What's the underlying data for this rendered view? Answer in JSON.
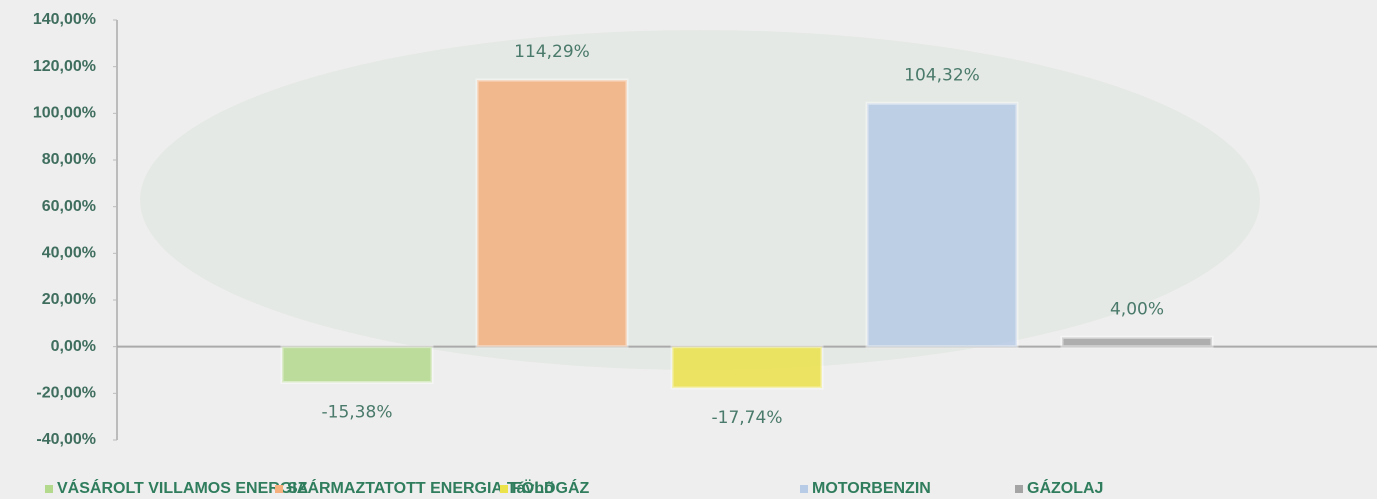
{
  "chart_data": {
    "type": "bar",
    "categories": [
      null
    ],
    "series": [
      {
        "name": "VÁSÁROLT VILLAMOS ENERGIA",
        "color": "#b3d98c",
        "values": [
          -15.38
        ],
        "value_labels": [
          "-15,38%"
        ]
      },
      {
        "name": "SZÁRMAZTATOTT ENERGIA Távhő",
        "color": "#f5b07e",
        "values": [
          114.29
        ],
        "value_labels": [
          "114,29%"
        ]
      },
      {
        "name": "FÖLDGÁZ",
        "color": "#ece24a",
        "values": [
          -17.74
        ],
        "value_labels": [
          "-17,74%"
        ]
      },
      {
        "name": "MOTORBENZIN",
        "color": "#b7cbe6",
        "values": [
          104.32
        ],
        "value_labels": [
          "104,32%"
        ]
      },
      {
        "name": "GÁZOLAJ",
        "color": "#a4a4a4",
        "values": [
          4.0
        ],
        "value_labels": [
          "4,00%"
        ]
      }
    ],
    "ylim": [
      -40,
      140
    ],
    "yticks": [
      {
        "value": -40,
        "label": "-40,00%"
      },
      {
        "value": -20,
        "label": "-20,00%"
      },
      {
        "value": 0,
        "label": "0,00%"
      },
      {
        "value": 20,
        "label": "20,00%"
      },
      {
        "value": 40,
        "label": "40,00%"
      },
      {
        "value": 60,
        "label": "60,00%"
      },
      {
        "value": 80,
        "label": "80,00%"
      },
      {
        "value": 100,
        "label": "100,00%"
      },
      {
        "value": 120,
        "label": "120,00%"
      },
      {
        "value": 140,
        "label": "140,00%"
      }
    ],
    "grid": false
  }
}
